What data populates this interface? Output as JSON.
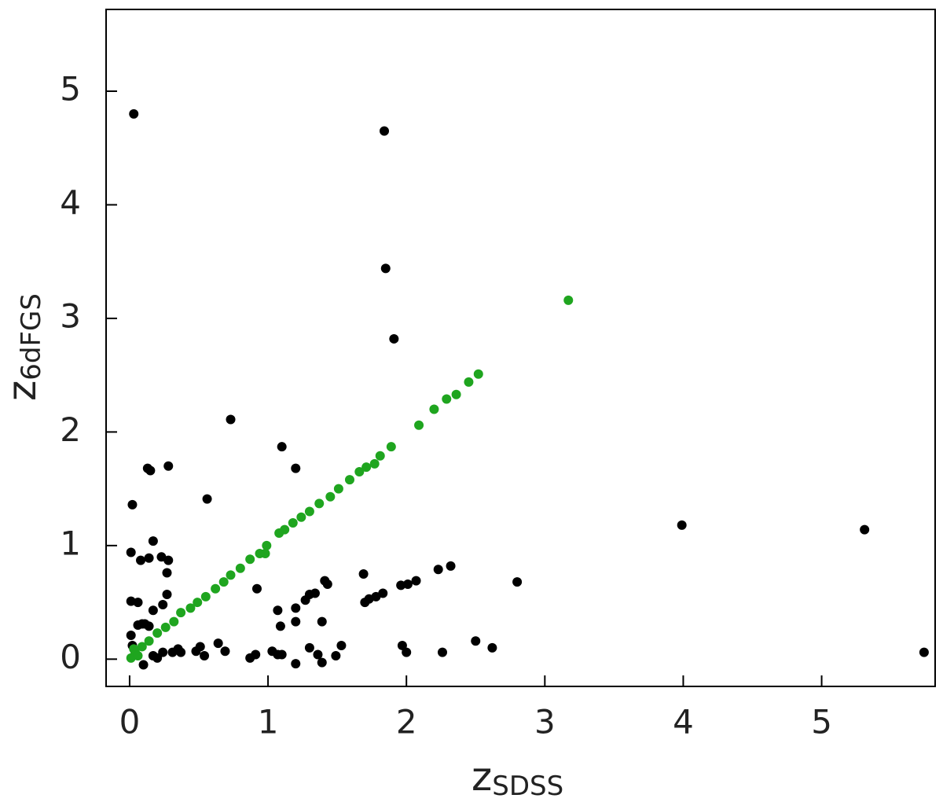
{
  "chart_data": {
    "type": "scatter",
    "xlabel": {
      "text": "z",
      "sub": "SDSS"
    },
    "ylabel": {
      "text": "z",
      "sub": "6dFGS"
    },
    "xlim": [
      -0.17,
      5.82
    ],
    "ylim": [
      -0.24,
      5.72
    ],
    "xticks": [
      0,
      1,
      2,
      3,
      4,
      5
    ],
    "yticks": [
      0,
      1,
      2,
      3,
      4,
      5
    ],
    "series": [
      {
        "color": "#000000",
        "x": [
          0.03,
          1.84,
          1.85,
          1.91,
          0.73,
          1.1,
          1.2,
          0.13,
          0.15,
          0.28,
          0.02,
          0.56,
          3.99,
          5.31,
          5.74,
          0.17,
          0.01,
          0.08,
          0.14,
          0.23,
          0.28,
          0.27,
          2.8,
          2.32,
          2.23,
          2.07,
          2.01,
          1.96,
          1.83,
          1.78,
          1.73,
          1.7,
          1.69,
          1.41,
          1.43,
          1.34,
          1.3,
          1.27,
          0.92,
          0.27,
          0.24,
          0.17,
          0.01,
          0.06,
          1.07,
          1.2,
          1.09,
          1.2,
          1.39,
          0.06,
          0.09,
          0.11,
          0.14,
          0.01,
          0.02,
          0.1,
          0.35,
          0.31,
          0.37,
          0.24,
          0.2,
          0.17,
          0.51,
          0.54,
          0.48,
          0.64,
          0.69,
          0.87,
          0.91,
          1.03,
          1.07,
          1.1,
          1.2,
          1.3,
          1.36,
          1.39,
          1.49,
          1.53,
          1.97,
          2.0,
          2.26,
          2.5,
          2.62
        ],
        "y": [
          4.8,
          4.65,
          3.44,
          2.82,
          2.11,
          1.87,
          1.68,
          1.68,
          1.66,
          1.7,
          1.36,
          1.41,
          1.18,
          1.14,
          0.06,
          1.04,
          0.94,
          0.87,
          0.89,
          0.9,
          0.87,
          0.76,
          0.68,
          0.82,
          0.79,
          0.69,
          0.66,
          0.65,
          0.58,
          0.55,
          0.53,
          0.5,
          0.75,
          0.69,
          0.66,
          0.58,
          0.57,
          0.52,
          0.62,
          0.57,
          0.48,
          0.43,
          0.51,
          0.5,
          0.43,
          0.45,
          0.29,
          0.33,
          0.33,
          0.3,
          0.31,
          0.31,
          0.29,
          0.21,
          0.12,
          -0.05,
          0.09,
          0.06,
          0.06,
          0.06,
          0.01,
          0.03,
          0.11,
          0.03,
          0.07,
          0.14,
          0.07,
          0.01,
          0.04,
          0.07,
          0.04,
          0.04,
          -0.04,
          0.1,
          0.04,
          -0.03,
          0.03,
          0.12,
          0.12,
          0.06,
          0.06,
          0.16,
          0.1
        ]
      },
      {
        "color": "#1fa51f",
        "x": [
          3.17,
          2.52,
          2.45,
          2.36,
          2.29,
          2.2,
          2.09,
          1.89,
          1.81,
          1.77,
          1.71,
          1.66,
          1.59,
          1.51,
          1.45,
          1.37,
          1.3,
          1.24,
          1.18,
          1.12,
          1.08,
          0.99,
          0.98,
          0.94,
          0.87,
          0.8,
          0.73,
          0.68,
          0.62,
          0.55,
          0.49,
          0.44,
          0.37,
          0.32,
          0.26,
          0.2,
          0.14,
          0.09,
          0.04,
          0.01,
          0.03,
          0.06
        ],
        "y": [
          3.16,
          2.51,
          2.44,
          2.33,
          2.29,
          2.2,
          2.06,
          1.87,
          1.79,
          1.72,
          1.69,
          1.65,
          1.58,
          1.5,
          1.43,
          1.37,
          1.3,
          1.25,
          1.2,
          1.14,
          1.11,
          1.0,
          0.93,
          0.93,
          0.88,
          0.8,
          0.74,
          0.68,
          0.62,
          0.55,
          0.5,
          0.45,
          0.41,
          0.33,
          0.28,
          0.23,
          0.16,
          0.11,
          0.06,
          0.01,
          0.09,
          0.03
        ]
      }
    ]
  }
}
